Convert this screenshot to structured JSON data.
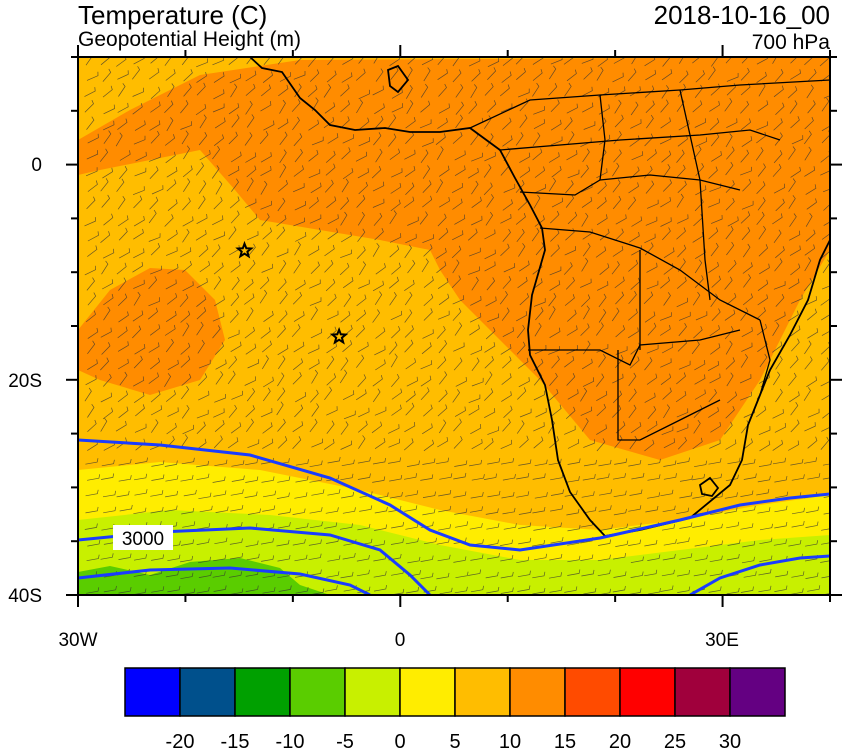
{
  "header": {
    "title": "Temperature (C)",
    "subtitle": "Geopotential Height (m)",
    "datetime": "2018-10-16_00",
    "level": "700 hPa"
  },
  "map": {
    "lon_range": [
      -30,
      40
    ],
    "lat_range": [
      -40,
      10
    ],
    "x_ticks": [
      {
        "value": -30,
        "label": "30W"
      },
      {
        "value": 0,
        "label": "0"
      },
      {
        "value": 30,
        "label": "30E"
      }
    ],
    "y_ticks": [
      {
        "value": 0,
        "label": "0"
      },
      {
        "value": -20,
        "label": "20S"
      },
      {
        "value": -40,
        "label": "40S"
      }
    ],
    "contour_label": "3000",
    "stars": [
      {
        "lon": -14.5,
        "lat": -8
      },
      {
        "lon": -5.7,
        "lat": -16
      }
    ]
  },
  "colorbar": {
    "colors": [
      "#0000ff",
      "#00508c",
      "#00a000",
      "#5acd00",
      "#c8f000",
      "#ffed00",
      "#ffbd00",
      "#ff8c00",
      "#ff4b00",
      "#ff0000",
      "#a0003c",
      "#640082"
    ],
    "labels": [
      "-20",
      "-15",
      "-10",
      "-5",
      "0",
      "5",
      "10",
      "15",
      "20",
      "25",
      "30"
    ]
  }
}
